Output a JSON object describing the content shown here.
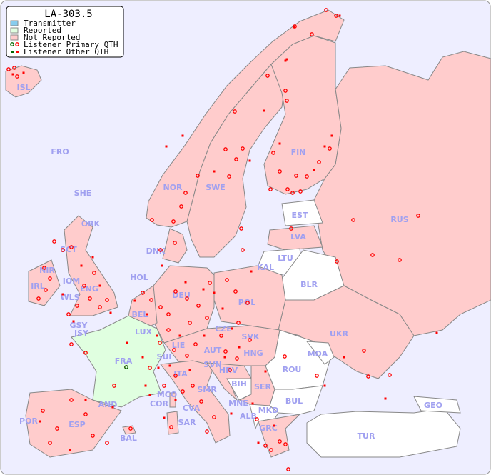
{
  "title": "LA-303.5",
  "legend": {
    "items": [
      {
        "label": "Transmitter",
        "color": "#88ccee"
      },
      {
        "label": "Reported",
        "color": "#e0ffe0"
      },
      {
        "label": "Not Reported",
        "color": "#ffcccc"
      },
      {
        "label": "Listener Primary QTH",
        "marker": "open-circle"
      },
      {
        "label": "Listener Other QTH",
        "marker": "filled-square"
      }
    ]
  },
  "colors": {
    "sea": "#eeeeff",
    "not_reported": "#ffcccc",
    "reported": "#e0ffe0",
    "no_data": "#ffffff",
    "marker": "#ff0000",
    "label": "#a0a0f0"
  },
  "countries": [
    "ISL",
    "FRO",
    "SHE",
    "ORK",
    "NOR",
    "SWE",
    "FIN",
    "RUS",
    "EST",
    "LVA",
    "LTU",
    "KAL",
    "DNK",
    "SCT",
    "NIR",
    "IOM",
    "IRL",
    "WLS",
    "ENG",
    "HOL",
    "BEL",
    "DEU",
    "POL",
    "BLR",
    "GSY",
    "JSY",
    "LUX",
    "CZE",
    "SVK",
    "UKR",
    "FRA",
    "SUI",
    "LIE",
    "AUT",
    "HNG",
    "MDA",
    "SVN",
    "HRV",
    "ROU",
    "ITA",
    "BIH",
    "SER",
    "MCO",
    "SMR",
    "COR",
    "AND",
    "CVA",
    "MNE",
    "BUL",
    "GEO",
    "ALB",
    "MKD",
    "POR",
    "ESP",
    "SAR",
    "BAL",
    "GRC",
    "TUR"
  ]
}
